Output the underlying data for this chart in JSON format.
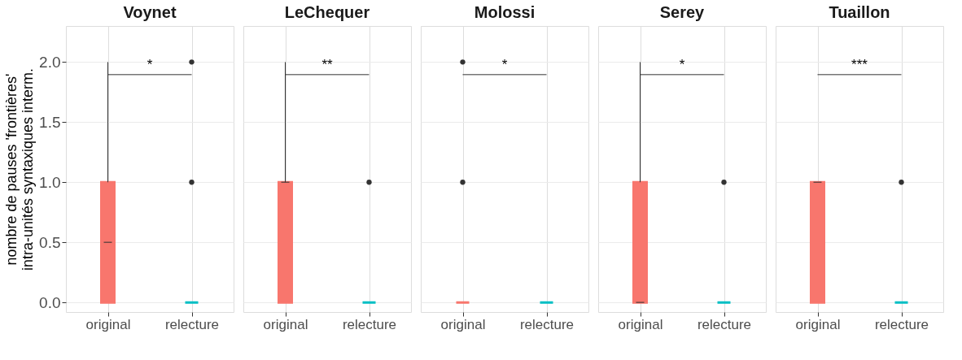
{
  "chart_data": [
    {
      "type": "box",
      "title": "Voynet",
      "ylabel": "nombre de pauses 'frontières'\nintra-unités syntaxiques interm.",
      "categories": [
        "original",
        "relecture"
      ],
      "colors": [
        "#f8766d",
        "#00bfc4"
      ],
      "ylim": [
        -0.08,
        2.3
      ],
      "yticks": [
        {
          "value": 0,
          "label": "0.0"
        },
        {
          "value": 0.5,
          "label": "0.5"
        },
        {
          "value": 1,
          "label": "1.0"
        },
        {
          "value": 1.5,
          "label": "1.5"
        },
        {
          "value": 2,
          "label": "2.0"
        }
      ],
      "grid": true,
      "boxes": [
        {
          "low": 0,
          "q1": 0,
          "median": 0.5,
          "q3": 1,
          "high": 2
        },
        {
          "low": 0,
          "q1": 0,
          "median": 0,
          "q3": 0,
          "high": 0,
          "outliers": [
            1,
            2
          ]
        }
      ],
      "annotations": [
        "*"
      ]
    },
    {
      "type": "box",
      "title": "LeChequer",
      "categories": [
        "original",
        "relecture"
      ],
      "colors": [
        "#f8766d",
        "#00bfc4"
      ],
      "ylim": [
        -0.08,
        2.3
      ],
      "yticks": [
        0,
        0.5,
        1,
        1.5,
        2
      ],
      "grid": true,
      "tick_labels": "x",
      "boxes": [
        {
          "low": 0,
          "q1": 0,
          "median": 1,
          "q3": 1,
          "high": 2
        },
        {
          "low": 0,
          "q1": 0,
          "median": 0,
          "q3": 0,
          "high": 0,
          "outliers": [
            1
          ]
        }
      ],
      "annotations": [
        "**"
      ]
    },
    {
      "type": "box",
      "title": "Molossi",
      "categories": [
        "original",
        "relecture"
      ],
      "colors": [
        "#f8766d",
        "#00bfc4"
      ],
      "ylim": [
        -0.08,
        2.3
      ],
      "yticks": [
        0,
        0.5,
        1,
        1.5,
        2
      ],
      "grid": true,
      "tick_labels": "x",
      "boxes": [
        {
          "low": 0,
          "q1": 0,
          "median": 0,
          "q3": 0,
          "high": 0,
          "outliers": [
            1,
            2
          ]
        },
        {
          "low": 0,
          "q1": 0,
          "median": 0,
          "q3": 0,
          "high": 0
        }
      ],
      "annotations": [
        "*"
      ]
    },
    {
      "type": "box",
      "title": "Serey",
      "categories": [
        "original",
        "relecture"
      ],
      "colors": [
        "#f8766d",
        "#00bfc4"
      ],
      "ylim": [
        -0.08,
        2.3
      ],
      "yticks": [
        0,
        0.5,
        1,
        1.5,
        2
      ],
      "grid": true,
      "tick_labels": "x",
      "boxes": [
        {
          "low": 0,
          "q1": 0,
          "median": 0,
          "q3": 1,
          "high": 2
        },
        {
          "low": 0,
          "q1": 0,
          "median": 0,
          "q3": 0,
          "high": 0,
          "outliers": [
            1
          ]
        }
      ],
      "annotations": [
        "*"
      ]
    },
    {
      "type": "box",
      "title": "Tuaillon",
      "categories": [
        "original",
        "relecture"
      ],
      "colors": [
        "#f8766d",
        "#00bfc4"
      ],
      "ylim": [
        -0.08,
        2.3
      ],
      "yticks": [
        0,
        0.5,
        1,
        1.5,
        2
      ],
      "grid": true,
      "tick_labels": "x",
      "boxes": [
        {
          "low": 0,
          "q1": 0,
          "median": 1,
          "q3": 1,
          "high": 1
        },
        {
          "low": 0,
          "q1": 0,
          "median": 0,
          "q3": 0,
          "high": 0,
          "outliers": [
            1
          ]
        }
      ],
      "annotations": [
        "***"
      ]
    }
  ]
}
